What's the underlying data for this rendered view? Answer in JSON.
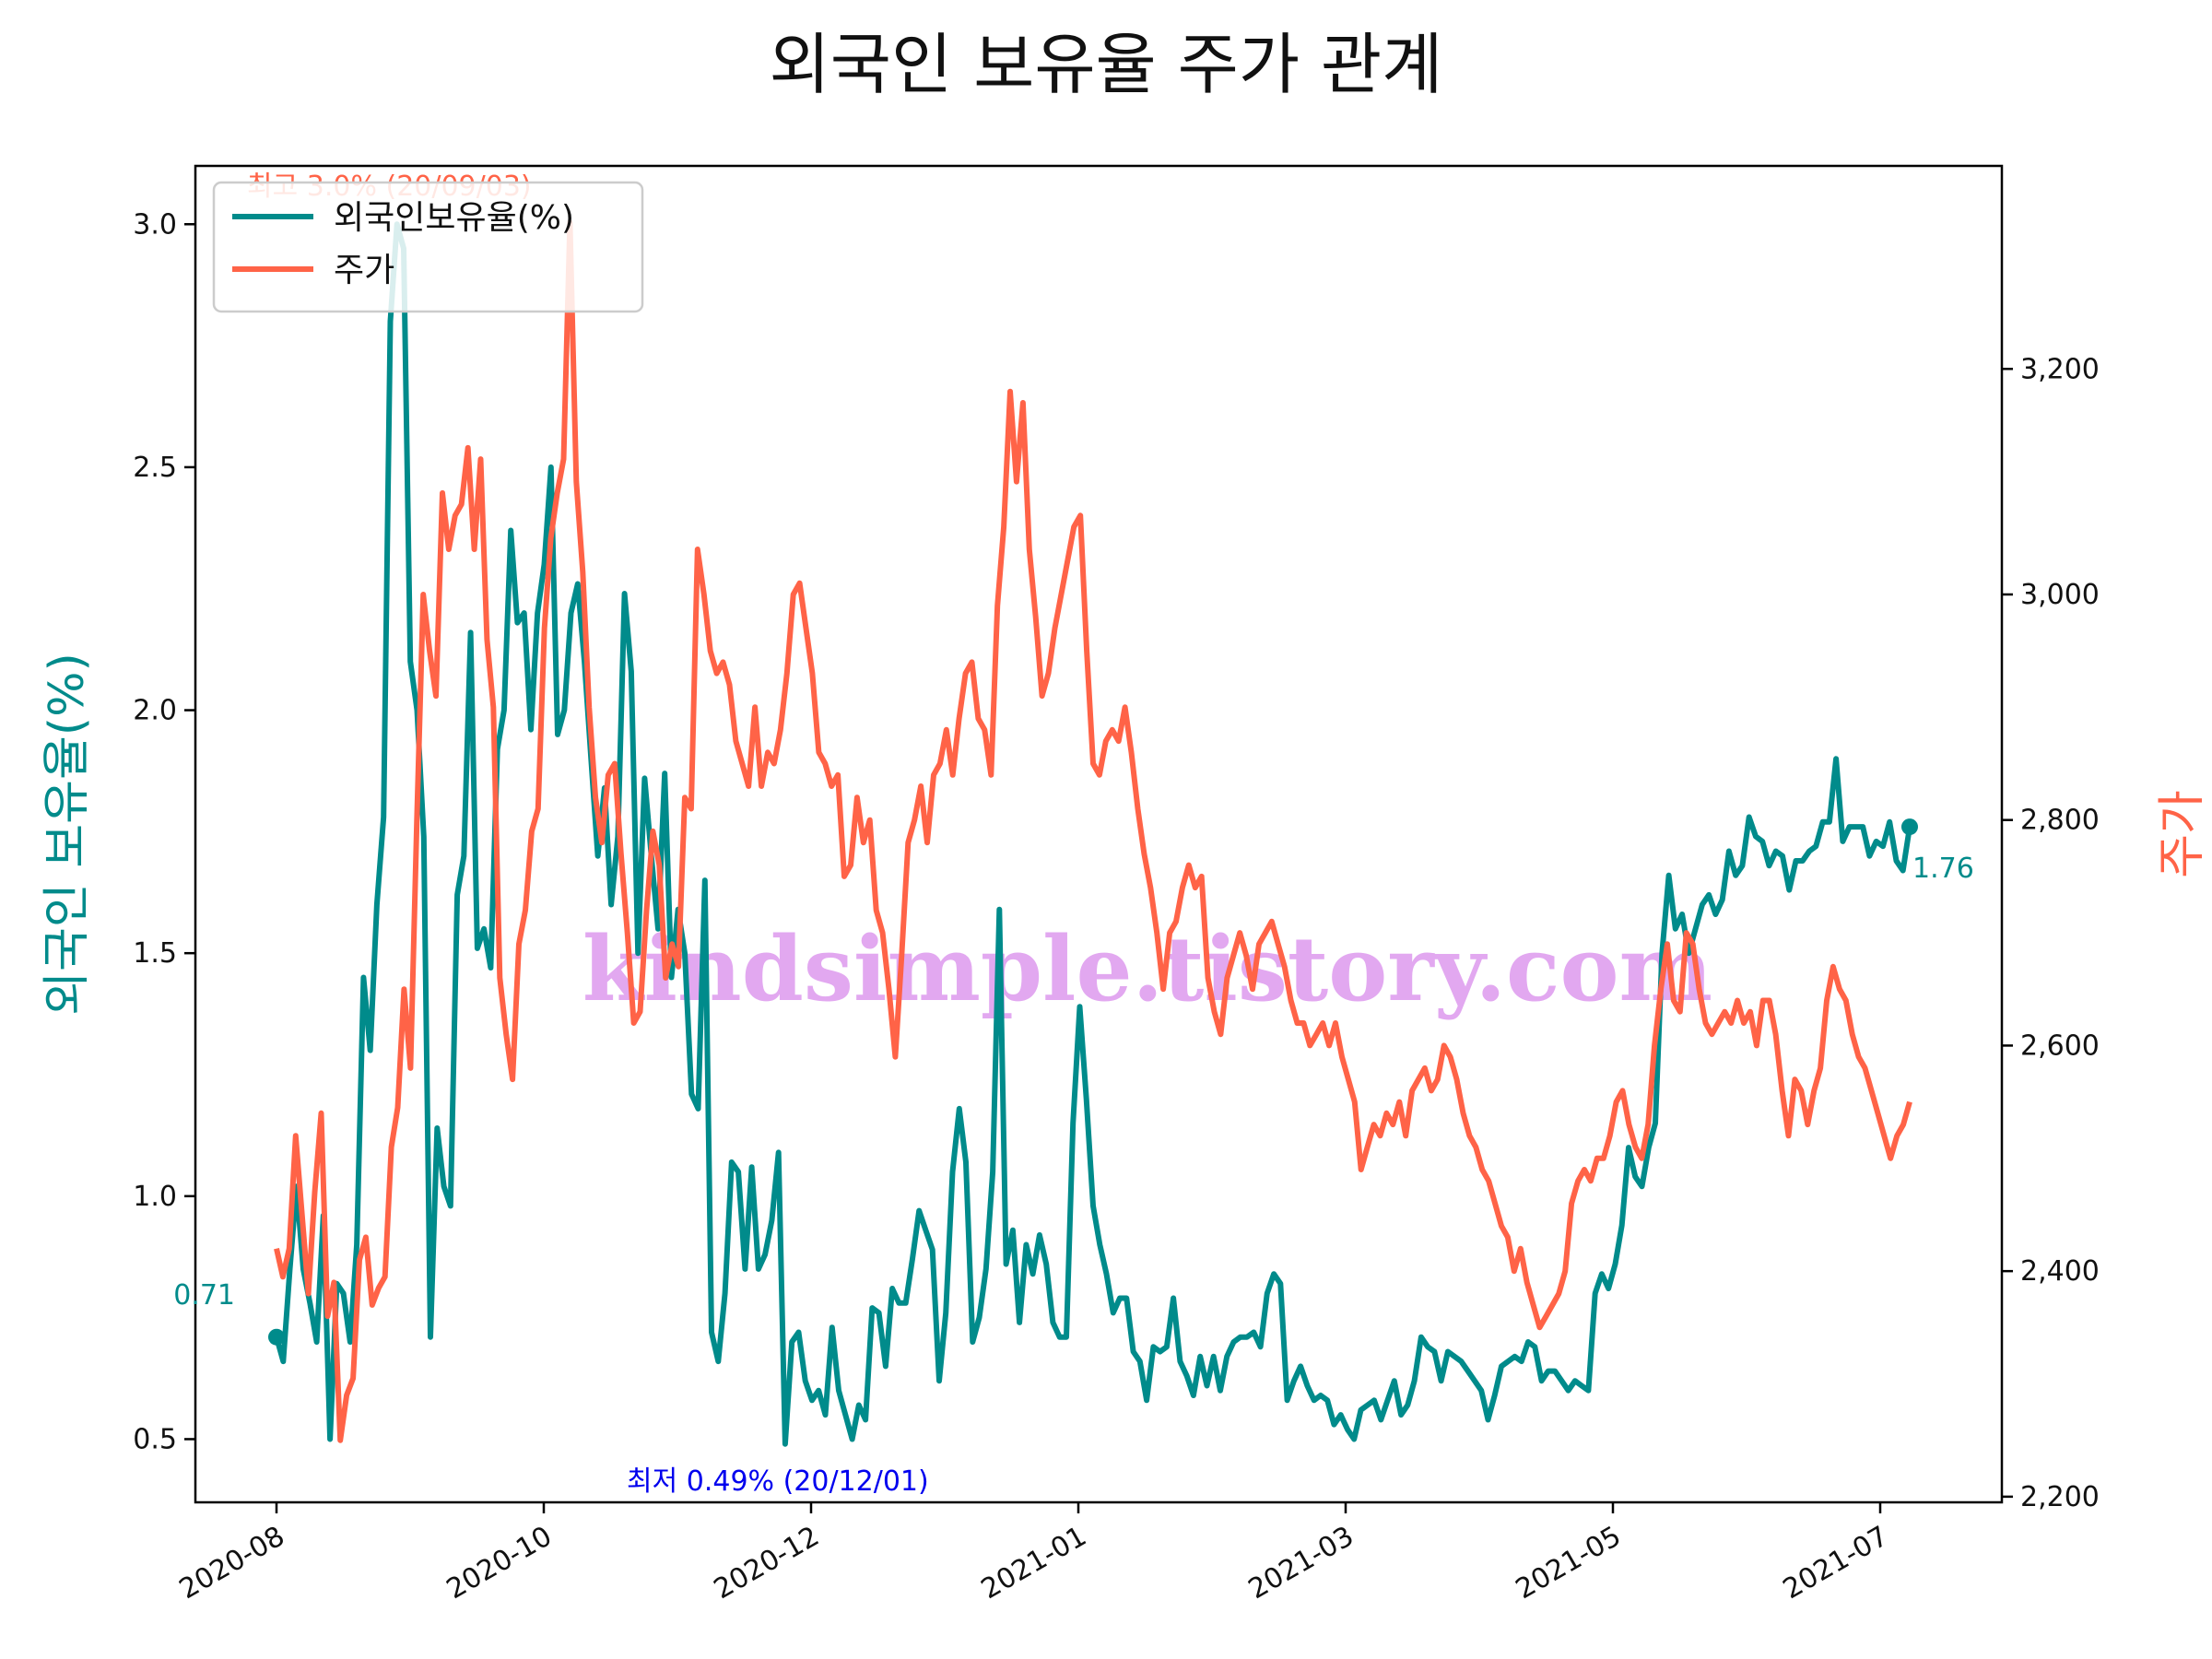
{
  "chart_data": {
    "type": "line",
    "title": "외국인 보유율 주가 관계",
    "y_left_label": "외국인 보유율(%)",
    "y_right_label": "주가",
    "x_ticks": [
      "2020-08",
      "2020-10",
      "2020-12",
      "2021-01",
      "2021-03",
      "2021-05",
      "2021-07"
    ],
    "y_left_ticks": [
      "0.5",
      "1.0",
      "1.5",
      "2.0",
      "2.5",
      "3.0"
    ],
    "y_right_ticks": [
      "2,200",
      "2,400",
      "2,600",
      "2,800",
      "3,000",
      "3,200"
    ],
    "ylim_left": [
      0.37,
      3.12
    ],
    "ylim_right": [
      2195,
      3380
    ],
    "legend": {
      "placement": "top-left",
      "entries": [
        "외국인보유율(%)",
        "주가"
      ]
    },
    "colors": {
      "foreign": "#008b8b",
      "price": "#ff6347",
      "low": "#0000ee",
      "high": "#ff6347",
      "watermark": "#dd99ee"
    },
    "annotations": {
      "start": "0.71",
      "end": "1.76",
      "low": "최저 0.49% (20/12/01)",
      "high": "최고 3.0% (20/09/03)"
    },
    "watermark": "kindsimple.tistory.com",
    "series": [
      {
        "name": "외국인보유율(%)",
        "values": [
          0.71,
          0.66,
          0.85,
          1.02,
          0.85,
          0.78,
          0.7,
          0.96,
          0.5,
          0.82,
          0.8,
          0.7,
          0.9,
          1.45,
          1.3,
          1.6,
          1.78,
          2.8,
          3.0,
          2.95,
          2.1,
          2.0,
          1.74,
          0.71,
          1.14,
          1.02,
          0.98,
          1.62,
          1.7,
          2.16,
          1.51,
          1.55,
          1.47,
          1.92,
          2.0,
          2.37,
          2.18,
          2.2,
          1.96,
          2.2,
          2.3,
          2.5,
          1.95,
          2.0,
          2.2,
          2.26,
          2.1,
          1.9,
          1.7,
          1.84,
          1.6,
          1.74,
          2.24,
          2.08,
          1.5,
          1.86,
          1.7,
          1.55,
          1.87,
          1.45,
          1.59,
          1.5,
          1.21,
          1.18,
          1.65,
          0.72,
          0.66,
          0.8,
          1.07,
          1.05,
          0.85,
          1.06,
          0.85,
          0.88,
          0.95,
          1.09,
          0.49,
          0.7,
          0.72,
          0.62,
          0.58,
          0.6,
          0.55,
          0.73,
          0.6,
          0.55,
          0.5,
          0.57,
          0.54,
          0.77,
          0.76,
          0.65,
          0.81,
          0.78,
          0.78,
          0.87,
          0.97,
          0.93,
          0.89,
          0.62,
          0.76,
          1.05,
          1.18,
          1.07,
          0.7,
          0.75,
          0.85,
          1.05,
          1.59,
          0.86,
          0.93,
          0.74,
          0.9,
          0.84,
          0.92,
          0.86,
          0.74,
          0.71,
          0.71,
          1.15,
          1.39,
          1.2,
          0.98,
          0.9,
          0.84,
          0.76,
          0.79,
          0.79,
          0.68,
          0.66,
          0.58,
          0.69,
          0.68,
          0.69,
          0.79,
          0.66,
          0.63,
          0.59,
          0.67,
          0.61,
          0.67,
          0.6,
          0.67,
          0.7,
          0.71,
          0.71,
          0.72,
          0.69,
          0.8,
          0.84,
          0.82,
          0.58,
          0.62,
          0.65,
          0.61,
          0.58,
          0.59,
          0.58,
          0.53,
          0.55,
          0.52,
          0.5,
          0.56,
          0.57,
          0.58,
          0.54,
          0.58,
          0.62,
          0.55,
          0.57,
          0.62,
          0.71,
          0.69,
          0.68,
          0.62,
          0.68,
          0.67,
          0.66,
          0.64,
          0.62,
          0.6,
          0.54,
          0.59,
          0.65,
          0.66,
          0.67,
          0.66,
          0.7,
          0.69,
          0.62,
          0.64,
          0.64,
          0.62,
          0.6,
          0.62,
          0.61,
          0.6,
          0.8,
          0.84,
          0.81,
          0.86,
          0.94,
          1.1,
          1.04,
          1.02,
          1.1,
          1.15,
          1.5,
          1.66,
          1.55,
          1.58,
          1.5,
          1.55,
          1.6,
          1.62,
          1.58,
          1.61,
          1.71,
          1.66,
          1.68,
          1.78,
          1.74,
          1.73,
          1.68,
          1.71,
          1.7,
          1.63,
          1.69,
          1.69,
          1.71,
          1.72,
          1.77,
          1.77,
          1.9,
          1.73,
          1.76,
          1.76,
          1.76,
          1.7,
          1.73,
          1.72,
          1.77,
          1.69,
          1.67,
          1.76
        ]
      },
      {
        "name": "주가",
        "values": [
          2420,
          2395,
          2420,
          2520,
          2450,
          2380,
          2470,
          2540,
          2360,
          2390,
          2250,
          2290,
          2305,
          2410,
          2430,
          2370,
          2385,
          2395,
          2510,
          2545,
          2650,
          2580,
          2800,
          3000,
          2950,
          2910,
          3090,
          3040,
          3070,
          3080,
          3130,
          3040,
          3120,
          2960,
          2900,
          2660,
          2610,
          2570,
          2690,
          2720,
          2790,
          2810,
          2970,
          3050,
          3090,
          3120,
          3330,
          3100,
          3020,
          2900,
          2820,
          2780,
          2840,
          2850,
          2770,
          2700,
          2620,
          2630,
          2720,
          2790,
          2760,
          2660,
          2690,
          2670,
          2820,
          2810,
          3040,
          3000,
          2950,
          2930,
          2940,
          2920,
          2870,
          2850,
          2830,
          2900,
          2830,
          2860,
          2850,
          2880,
          2930,
          3000,
          3010,
          2970,
          2930,
          2860,
          2850,
          2830,
          2840,
          2750,
          2760,
          2820,
          2780,
          2800,
          2720,
          2700,
          2650,
          2590,
          2680,
          2780,
          2800,
          2830,
          2780,
          2840,
          2850,
          2880,
          2840,
          2890,
          2930,
          2940,
          2890,
          2880,
          2840,
          2990,
          3060,
          3180,
          3100,
          3170,
          3040,
          2980,
          2910,
          2930,
          2970,
          3000,
          3030,
          3060,
          3070,
          2950,
          2850,
          2840,
          2870,
          2880,
          2870,
          2900,
          2860,
          2810,
          2770,
          2740,
          2700,
          2650,
          2700,
          2710,
          2740,
          2760,
          2740,
          2750,
          2660,
          2630,
          2610,
          2660,
          2680,
          2700,
          2680,
          2650,
          2690,
          2700,
          2710,
          2690,
          2670,
          2640,
          2620,
          2620,
          2600,
          2610,
          2620,
          2600,
          2620,
          2590,
          2570,
          2550,
          2490,
          2510,
          2530,
          2520,
          2540,
          2530,
          2550,
          2520,
          2560,
          2570,
          2580,
          2560,
          2570,
          2600,
          2590,
          2570,
          2540,
          2520,
          2510,
          2490,
          2480,
          2460,
          2440,
          2430,
          2400,
          2420,
          2390,
          2370,
          2350,
          2360,
          2370,
          2380,
          2400,
          2460,
          2480,
          2490,
          2480,
          2500,
          2500,
          2520,
          2550,
          2560,
          2530,
          2510,
          2500,
          2530,
          2600,
          2650,
          2690,
          2640,
          2630,
          2700,
          2690,
          2650,
          2620,
          2610,
          2620,
          2630,
          2620,
          2640,
          2620,
          2630,
          2600,
          2640,
          2640,
          2610,
          2560,
          2520,
          2570,
          2560,
          2530,
          2560,
          2580,
          2640,
          2670,
          2650,
          2640,
          2610,
          2590,
          2580,
          2560,
          2540,
          2520,
          2500,
          2520,
          2530,
          2550
        ]
      }
    ]
  }
}
